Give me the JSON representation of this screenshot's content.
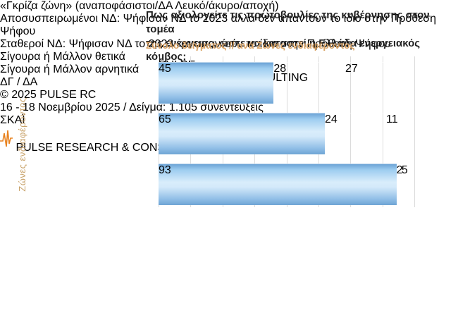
{
  "header": {
    "title": "Πως αξιολογείτε τις πρωτοβουλίες της κυβέρνησης στον τομέα\nτης ενέργειας, ώστε να καταστεί η Ελλάδα ενεργειακός κόμβος;",
    "subtitle": "Σύνολο δείγματος // ανά Ζώνες ενδιαφέροντος"
  },
  "axis_group_label": "Ζώνες ενδιαφέροντος",
  "chart_data": {
    "type": "bar",
    "orientation": "horizontal_stacked",
    "categories": [
      "«Γκρίζα ζώνη»\n(αναποφάσιστοι/ΔΑ\nΛευκό/άκυρο/αποχή)",
      "Αποσυσπειρωμένοι ΝΔ:\nΨήφισαν ΝΔ το 2023\nαλλά δεν απαντούν το\nίδιο στην Πρόθεση Ψήφου",
      "Σταθεροί ΝΔ: Ψήφισαν ΝΔ\nτο 2023 και απαντούν το\nίδιο στην Πρόθεση Ψήφου"
    ],
    "series": [
      {
        "name": "Σίγουρα ή\nΜάλλον θετικά",
        "color": "#9ECDF0",
        "values": [
          45,
          65,
          93
        ]
      },
      {
        "name": "Σίγουρα ή\nΜάλλον αρνητικά",
        "color": "#F4CFA0",
        "values": [
          28,
          24,
          2
        ]
      },
      {
        "name": "ΔΓ /\nΔΑ",
        "color": "#CDC5B3",
        "values": [
          27,
          11,
          5
        ]
      }
    ],
    "xlabel": "",
    "ylabel": "Ζώνες ενδιαφέροντος",
    "xlim": [
      0,
      100
    ],
    "xticks": [
      "0",
      "25",
      "50",
      "75",
      "100"
    ],
    "grid": true,
    "gridline_step": 12.5,
    "legend_position": "bottom"
  },
  "watermark": {
    "text": "PULSE",
    "subtext": "RESEARCH & CONSULTING"
  },
  "copyright": "©  2025  PULSE RC",
  "footer": {
    "fieldwork": "16 - 18 Νοεμβρίου 2025  /  Δείγμα:  1.105 συνεντεύξεις"
  },
  "logos": {
    "skai": "ΣΚΑΪ",
    "pulse": "PULSE",
    "pulse_sub": "RESEARCH & CONSULTING"
  },
  "colors": {
    "positive_blue": "#9ECDF0",
    "negative_orange": "#F4CFA0",
    "dkda_gray": "#CDC5B3",
    "accent_orange": "#D9A263",
    "skai_blue": "#2163DF",
    "pulse_navy": "#1D2B4C"
  }
}
